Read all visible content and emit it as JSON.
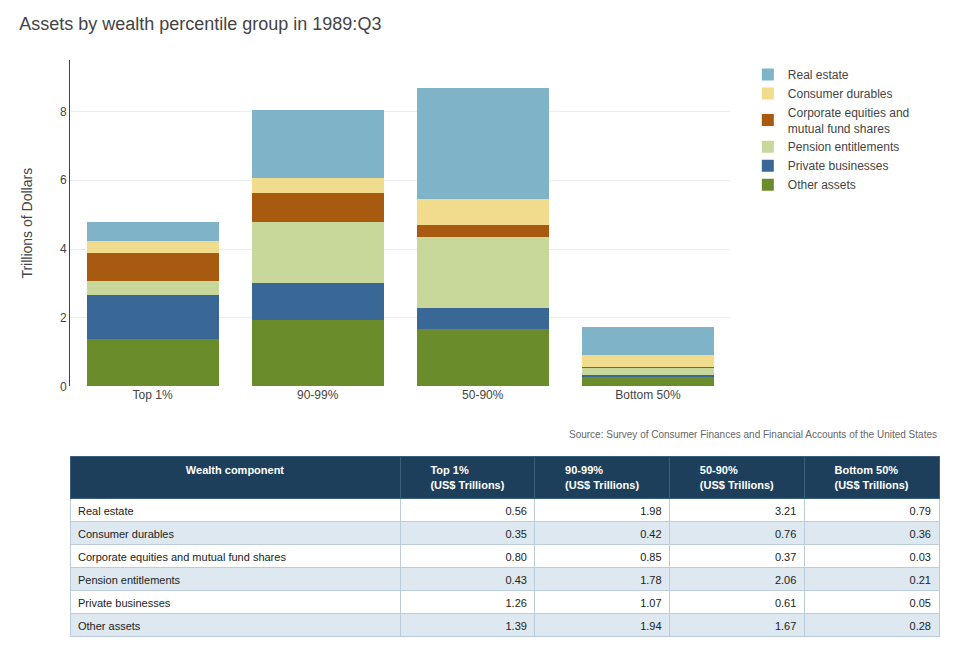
{
  "chart_data": [
    {
      "type": "bar",
      "stacked": true,
      "title": "Assets by wealth percentile group in 1989:Q3",
      "ylabel": "Trillions of Dollars",
      "categories": [
        "Top 1%",
        "90-99%",
        "50-90%",
        "Bottom 50%"
      ],
      "series": [
        {
          "name": "Other assets",
          "color": "#6b8c2a",
          "values": [
            1.39,
            1.94,
            1.67,
            0.28
          ]
        },
        {
          "name": "Private businesses",
          "color": "#3a6896",
          "values": [
            1.26,
            1.07,
            0.61,
            0.05
          ]
        },
        {
          "name": "Pension entitlements",
          "color": "#c8d89a",
          "values": [
            0.43,
            1.78,
            2.06,
            0.21
          ]
        },
        {
          "name": "Corporate equities and\nmutual fund shares",
          "color": "#a85a10",
          "values": [
            0.8,
            0.85,
            0.37,
            0.03
          ]
        },
        {
          "name": "Consumer durables",
          "color": "#f0dc8c",
          "values": [
            0.35,
            0.42,
            0.76,
            0.36
          ]
        },
        {
          "name": "Real estate",
          "color": "#7fb3c8",
          "values": [
            0.56,
            1.98,
            3.21,
            0.79
          ]
        }
      ],
      "ylim": [
        0,
        9.5
      ],
      "yticks": [
        0,
        2,
        4,
        6,
        8
      ],
      "grid": true,
      "legend": "upper right",
      "annotations": [
        {
          "text": "Source: Survey of Consumer Finances and Financial Accounts of the United States"
        }
      ]
    },
    {
      "type": "table",
      "columns": [
        "Wealth component",
        "Top 1%\n(US$ Trillions)",
        "90-99%\n(US$ Trillions)",
        "50-90%\n(US$ Trillions)",
        "Bottom 50%\n(US$ Trillions)"
      ],
      "rows": [
        [
          "Real estate",
          "0.56",
          "1.98",
          "3.21",
          "0.79"
        ],
        [
          "Consumer durables",
          "0.35",
          "0.42",
          "0.76",
          "0.36"
        ],
        [
          "Corporate equities and mutual fund shares",
          "0.80",
          "0.85",
          "0.37",
          "0.03"
        ],
        [
          "Pension entitlements",
          "0.43",
          "1.78",
          "2.06",
          "0.21"
        ],
        [
          "Private businesses",
          "1.26",
          "1.07",
          "0.61",
          "0.05"
        ],
        [
          "Other assets",
          "1.39",
          "1.94",
          "1.67",
          "0.28"
        ]
      ],
      "header_color": "#1e3f5c",
      "header_font_color": "#ffffff",
      "row_colors": [
        "#ffffff",
        "#dde8f0"
      ]
    }
  ]
}
